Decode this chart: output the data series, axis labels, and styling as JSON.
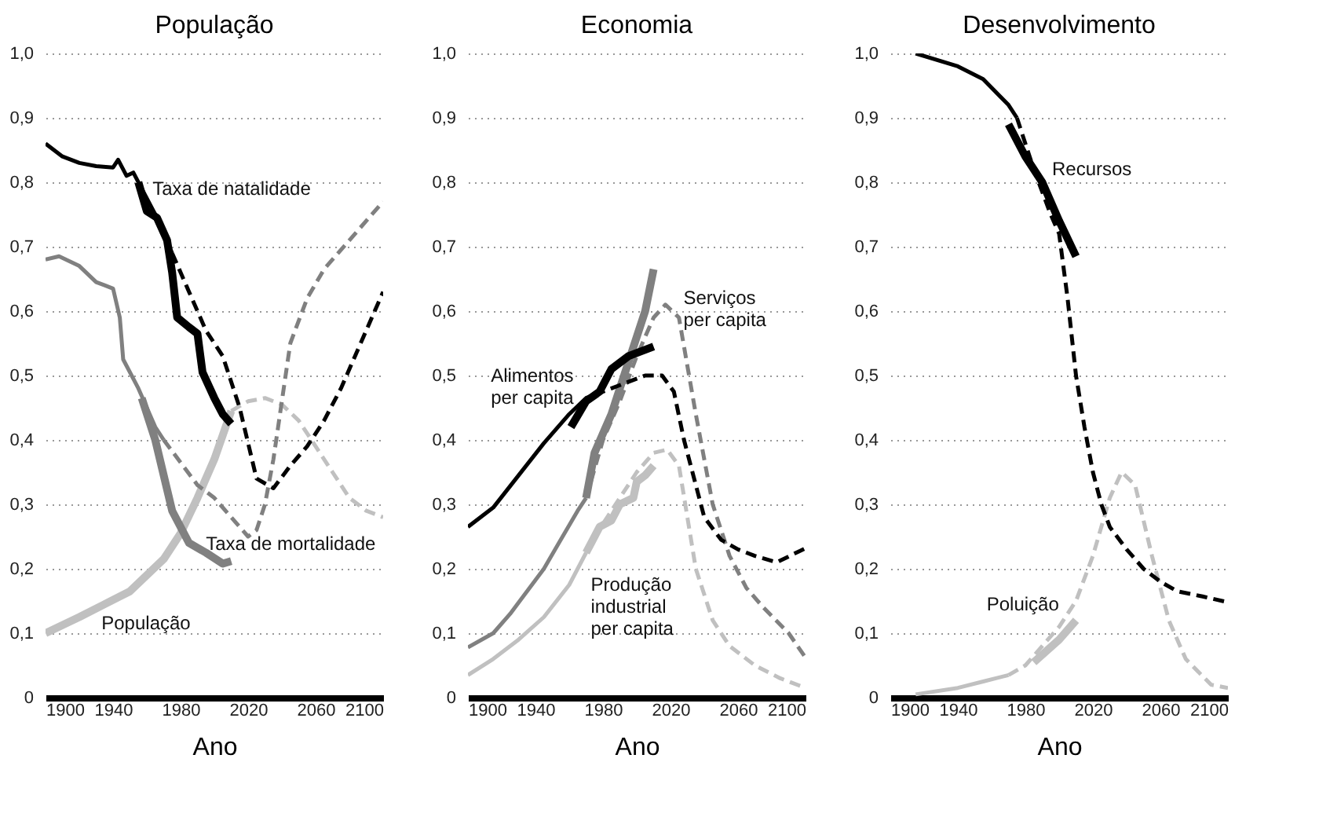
{
  "chart_data": [
    {
      "type": "line",
      "title": "População",
      "xlabel": "Ano",
      "xlim": [
        1900,
        2100
      ],
      "xticks": [
        1900,
        1940,
        1980,
        2020,
        2060,
        2100
      ],
      "ylim": [
        0,
        1
      ],
      "yticks": [
        {
          "value": 0,
          "label": "0"
        },
        {
          "value": 0.1,
          "label": "0,1"
        },
        {
          "value": 0.2,
          "label": "0,2"
        },
        {
          "value": 0.3,
          "label": "0,3"
        },
        {
          "value": 0.4,
          "label": "0,4"
        },
        {
          "value": 0.5,
          "label": "0,5"
        },
        {
          "value": 0.6,
          "label": "0,6"
        },
        {
          "value": 0.7,
          "label": "0,7"
        },
        {
          "value": 0.8,
          "label": "0,8"
        },
        {
          "value": 0.9,
          "label": "0,9"
        },
        {
          "value": 1,
          "label": "1,0"
        }
      ],
      "grid": "y",
      "series": [
        {
          "name": "População",
          "color": "#c0c0c0",
          "line_style": "solid",
          "x": [
            1900,
            1920,
            1935,
            1950,
            1960,
            1970,
            1980,
            1990,
            2000,
            2010
          ],
          "values": [
            0.1,
            0.125,
            0.145,
            0.165,
            0.19,
            0.215,
            0.255,
            0.31,
            0.37,
            0.445
          ]
        },
        {
          "color": "#c0c0c0",
          "line_style": "dashed",
          "x": [
            2010,
            2020,
            2030,
            2040,
            2050,
            2060,
            2070,
            2080,
            2090,
            2100
          ],
          "values": [
            0.445,
            0.46,
            0.465,
            0.455,
            0.43,
            0.39,
            0.35,
            0.31,
            0.29,
            0.28
          ]
        },
        {
          "color": "#808080",
          "line_style": "solid",
          "x": [
            1900,
            1908,
            1920,
            1930,
            1935,
            1940,
            1944,
            1946,
            1955,
            1965,
            1970
          ],
          "values": [
            0.68,
            0.685,
            0.67,
            0.645,
            0.64,
            0.635,
            0.59,
            0.525,
            0.48,
            0.42,
            0.4
          ]
        },
        {
          "color": "#808080",
          "line_style": "dashed",
          "x": [
            1970,
            1980,
            1990,
            2000,
            2010,
            2020,
            2025,
            2030,
            2035,
            2040,
            2045,
            2055,
            2065,
            2080,
            2090,
            2100
          ],
          "values": [
            0.4,
            0.365,
            0.33,
            0.31,
            0.28,
            0.25,
            0.26,
            0.3,
            0.37,
            0.46,
            0.55,
            0.62,
            0.665,
            0.71,
            0.74,
            0.77
          ]
        },
        {
          "name": "Taxa de mortalidade",
          "color": "#808080",
          "line_style": "solid",
          "x": [
            1957,
            1965,
            1975,
            1980,
            1985,
            1995,
            2005,
            2010
          ],
          "values": [
            0.465,
            0.4,
            0.29,
            0.265,
            0.24,
            0.225,
            0.208,
            0.212
          ]
        },
        {
          "color": "#000000",
          "line_style": "solid",
          "x": [
            1900,
            1910,
            1920,
            1930,
            1940,
            1943,
            1948,
            1952,
            1957,
            1965,
            1975
          ],
          "values": [
            0.86,
            0.84,
            0.83,
            0.825,
            0.823,
            0.835,
            0.81,
            0.815,
            0.79,
            0.75,
            0.69
          ]
        },
        {
          "color": "#000000",
          "line_style": "dashed",
          "x": [
            1975,
            1985,
            1995,
            2005,
            2015,
            2025,
            2035,
            2045,
            2055,
            2065,
            2075,
            2085,
            2095,
            2100
          ],
          "values": [
            0.69,
            0.63,
            0.57,
            0.53,
            0.45,
            0.34,
            0.325,
            0.36,
            0.39,
            0.43,
            0.48,
            0.54,
            0.6,
            0.63
          ]
        },
        {
          "name": "Taxa de natalidade",
          "color": "#000000",
          "line_style": "solid",
          "x": [
            1955,
            1960,
            1966,
            1972,
            1975,
            1978,
            1985,
            1990,
            1993,
            2000,
            2005,
            2010
          ],
          "values": [
            0.8,
            0.755,
            0.745,
            0.71,
            0.66,
            0.59,
            0.575,
            0.565,
            0.505,
            0.465,
            0.44,
            0.425
          ]
        }
      ]
    },
    {
      "type": "line",
      "title": "Economia",
      "xlabel": "Ano",
      "xlim": [
        1900,
        2100
      ],
      "xticks": [
        1900,
        1940,
        1980,
        2020,
        2060,
        2100
      ],
      "ylim": [
        0,
        1
      ],
      "yticks": [
        {
          "value": 0,
          "label": "0"
        },
        {
          "value": 0.1,
          "label": "0,1"
        },
        {
          "value": 0.2,
          "label": "0,2"
        },
        {
          "value": 0.3,
          "label": "0,3"
        },
        {
          "value": 0.4,
          "label": "0,4"
        },
        {
          "value": 0.5,
          "label": "0,5"
        },
        {
          "value": 0.6,
          "label": "0,6"
        },
        {
          "value": 0.7,
          "label": "0,7"
        },
        {
          "value": 0.8,
          "label": "0,8"
        },
        {
          "value": 0.9,
          "label": "0,9"
        },
        {
          "value": 1,
          "label": "1,0"
        }
      ],
      "grid": "y",
      "series": [
        {
          "color": "#c0c0c0",
          "line_style": "solid",
          "x": [
            1900,
            1915,
            1930,
            1945,
            1960,
            1970
          ],
          "values": [
            0.035,
            0.06,
            0.09,
            0.125,
            0.175,
            0.225
          ]
        },
        {
          "color": "#c0c0c0",
          "line_style": "dashed",
          "x": [
            1970,
            1980,
            1990,
            2000,
            2010,
            2018,
            2025,
            2035,
            2045,
            2055,
            2070,
            2085,
            2100
          ],
          "values": [
            0.225,
            0.27,
            0.31,
            0.35,
            0.38,
            0.385,
            0.36,
            0.2,
            0.12,
            0.08,
            0.05,
            0.03,
            0.015
          ]
        },
        {
          "name": "Produção\nindustrial\nper capita",
          "color": "#c0c0c0",
          "line_style": "solid",
          "x": [
            1970,
            1978,
            1985,
            1990,
            1998,
            2000,
            2005,
            2010
          ],
          "values": [
            0.225,
            0.265,
            0.275,
            0.3,
            0.31,
            0.335,
            0.345,
            0.36
          ]
        },
        {
          "color": "#808080",
          "line_style": "solid",
          "x": [
            1900,
            1915,
            1925,
            1935,
            1945,
            1955,
            1965,
            1970
          ],
          "values": [
            0.078,
            0.1,
            0.13,
            0.165,
            0.2,
            0.245,
            0.29,
            0.31
          ]
        },
        {
          "color": "#808080",
          "line_style": "dashed",
          "x": [
            1970,
            1980,
            1990,
            2000,
            2010,
            2017,
            2025,
            2035,
            2045,
            2055,
            2065,
            2075,
            2090,
            2100
          ],
          "values": [
            0.31,
            0.4,
            0.46,
            0.53,
            0.59,
            0.61,
            0.59,
            0.44,
            0.3,
            0.22,
            0.17,
            0.14,
            0.1,
            0.062
          ]
        },
        {
          "name": "Serviços\nper capita",
          "color": "#808080",
          "line_style": "solid",
          "x": [
            1970,
            1975,
            1985,
            1995,
            2005,
            2010
          ],
          "values": [
            0.31,
            0.38,
            0.44,
            0.52,
            0.6,
            0.665
          ]
        },
        {
          "color": "#000000",
          "line_style": "solid",
          "x": [
            1900,
            1915,
            1930,
            1945,
            1960,
            1970,
            1975
          ],
          "values": [
            0.265,
            0.295,
            0.345,
            0.395,
            0.44,
            0.465,
            0.47
          ]
        },
        {
          "color": "#000000",
          "line_style": "dashed",
          "x": [
            1975,
            1985,
            1995,
            2005,
            2015,
            2022,
            2028,
            2040,
            2050,
            2060,
            2070,
            2083,
            2100
          ],
          "values": [
            0.47,
            0.48,
            0.49,
            0.5,
            0.5,
            0.475,
            0.4,
            0.28,
            0.245,
            0.23,
            0.22,
            0.21,
            0.232
          ]
        },
        {
          "name": "Alimentos\nper capita",
          "color": "#000000",
          "line_style": "solid",
          "x": [
            1961,
            1970,
            1978,
            1985,
            1995,
            2010
          ],
          "values": [
            0.42,
            0.46,
            0.475,
            0.51,
            0.53,
            0.545
          ]
        }
      ]
    },
    {
      "type": "line",
      "title": "Desenvolvimento",
      "xlabel": "Ano",
      "xlim": [
        1900,
        2100
      ],
      "xticks": [
        1900,
        1940,
        1980,
        2020,
        2060,
        2100
      ],
      "ylim": [
        0,
        1
      ],
      "yticks": [
        {
          "value": 0,
          "label": "0"
        },
        {
          "value": 0.1,
          "label": "0,1"
        },
        {
          "value": 0.2,
          "label": "0,2"
        },
        {
          "value": 0.3,
          "label": "0,3"
        },
        {
          "value": 0.4,
          "label": "0,4"
        },
        {
          "value": 0.5,
          "label": "0,5"
        },
        {
          "value": 0.6,
          "label": "0,6"
        },
        {
          "value": 0.7,
          "label": "0,7"
        },
        {
          "value": 0.8,
          "label": "0,8"
        },
        {
          "value": 0.9,
          "label": "0,9"
        },
        {
          "value": 1,
          "label": "1,0"
        }
      ],
      "grid": "y",
      "series": [
        {
          "color": "#c0c0c0",
          "line_style": "solid",
          "x": [
            1915,
            1940,
            1955,
            1970
          ],
          "values": [
            0.005,
            0.015,
            0.025,
            0.035
          ]
        },
        {
          "color": "#c0c0c0",
          "line_style": "dashed",
          "x": [
            1970,
            1980,
            1990,
            2000,
            2010,
            2020,
            2030,
            2037,
            2045,
            2055,
            2065,
            2075,
            2090,
            2100
          ],
          "values": [
            0.035,
            0.05,
            0.08,
            0.11,
            0.15,
            0.22,
            0.31,
            0.35,
            0.33,
            0.22,
            0.12,
            0.06,
            0.02,
            0.015
          ]
        },
        {
          "name": "Poluição",
          "color": "#c0c0c0",
          "line_style": "solid",
          "x": [
            1985,
            2000,
            2010
          ],
          "values": [
            0.055,
            0.09,
            0.12
          ]
        },
        {
          "color": "#000000",
          "line_style": "solid",
          "x": [
            1915,
            1940,
            1955,
            1970,
            1975
          ],
          "values": [
            1.0,
            0.98,
            0.96,
            0.92,
            0.9
          ]
        },
        {
          "color": "#000000",
          "line_style": "dashed",
          "x": [
            1975,
            1985,
            1995,
            2000,
            2005,
            2010,
            2015,
            2020,
            2025,
            2030,
            2040,
            2050,
            2060,
            2070,
            2085,
            2100
          ],
          "values": [
            0.9,
            0.82,
            0.75,
            0.72,
            0.62,
            0.5,
            0.42,
            0.35,
            0.3,
            0.265,
            0.23,
            0.2,
            0.18,
            0.165,
            0.157,
            0.148
          ]
        },
        {
          "name": "Recursos",
          "color": "#000000",
          "line_style": "solid",
          "x": [
            1970,
            1980,
            1990,
            2000,
            2010
          ],
          "values": [
            0.89,
            0.84,
            0.8,
            0.74,
            0.685
          ]
        }
      ]
    }
  ]
}
